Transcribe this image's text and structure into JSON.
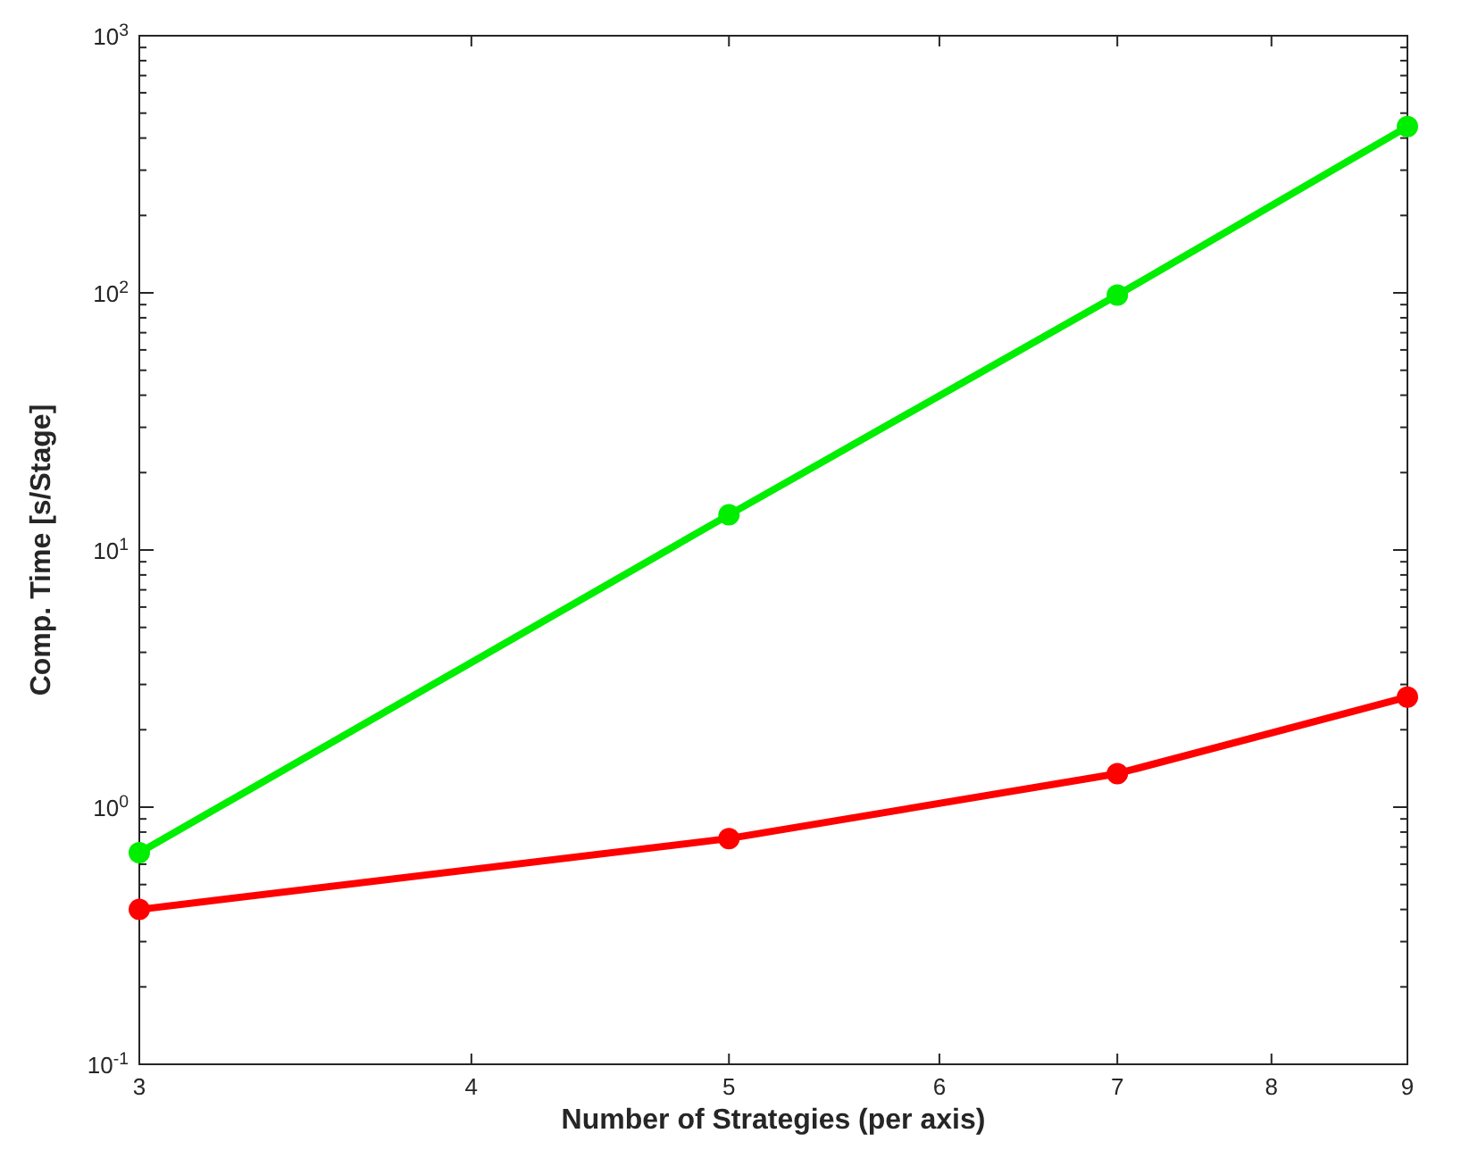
{
  "chart_data": {
    "type": "line",
    "xlabel": "Number of Strategies (per axis)",
    "ylabel": "Comp. Time [s/Stage]",
    "log": "xy",
    "x": [
      3,
      5,
      7,
      9
    ],
    "series": [
      {
        "color": "#00ee00",
        "values": [
          0.665,
          13.7,
          98,
          443
        ]
      },
      {
        "color": "#ff0000",
        "values": [
          0.4,
          0.755,
          1.35,
          2.68
        ]
      }
    ],
    "xlim": [
      3,
      9
    ],
    "xticks": [
      3,
      4,
      5,
      6,
      7,
      8,
      9
    ],
    "ylim": [
      0.1,
      1000
    ],
    "yticks": [
      {
        "value": 0.1,
        "label": "10$^{-1}$"
      },
      {
        "value": 1,
        "label": "10$^{0}$"
      },
      {
        "value": 10,
        "label": "10$^{1}$"
      },
      {
        "value": 100,
        "label": "10$^{2}$"
      },
      {
        "value": 1000,
        "label": "10$^{3}$"
      }
    ],
    "marker": "circle",
    "line_style": "solid",
    "grid": false
  }
}
